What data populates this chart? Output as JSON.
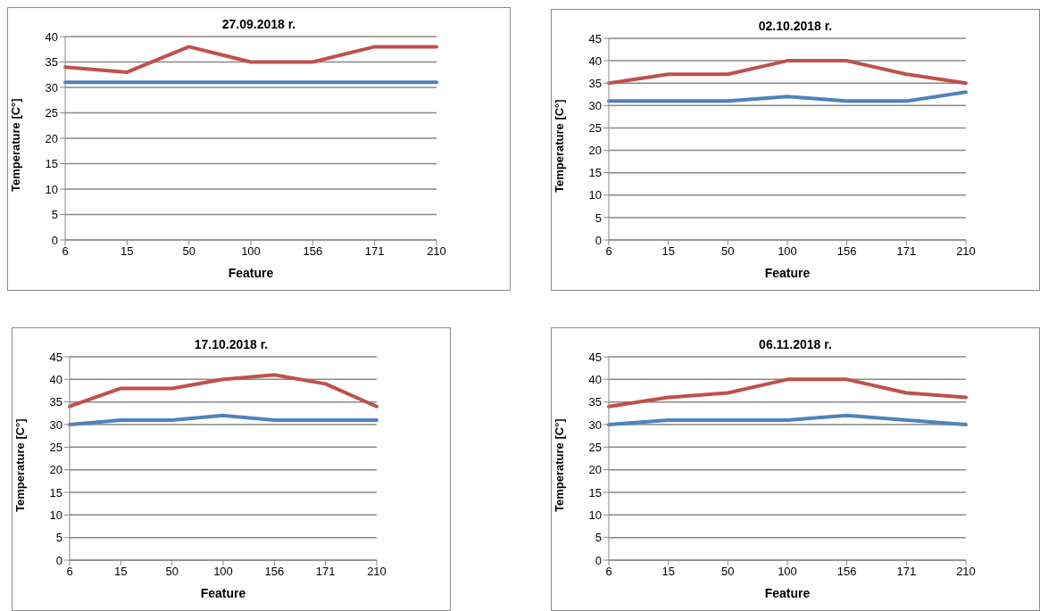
{
  "chart_data": [
    {
      "type": "line",
      "title": "27.09.2018 r.",
      "xlabel": "Feature",
      "ylabel": "Temperature [C°]",
      "categories": [
        "6",
        "15",
        "50",
        "100",
        "156",
        "171",
        "210"
      ],
      "series": [
        {
          "color": "#c0504d",
          "values": [
            34,
            33,
            38,
            35,
            35,
            38,
            38
          ]
        },
        {
          "color": "#4f81bd",
          "values": [
            31,
            31,
            31,
            31,
            31,
            31,
            31
          ]
        }
      ],
      "ylim": [
        0,
        40
      ],
      "yticks": [
        0,
        5,
        10,
        15,
        20,
        25,
        30,
        35,
        40
      ],
      "grid": "y",
      "marker": "none",
      "line_style": "solid"
    },
    {
      "type": "line",
      "title": "02.10.2018 r.",
      "xlabel": "Feature",
      "ylabel": "Temperature [C°]",
      "categories": [
        "6",
        "15",
        "50",
        "100",
        "156",
        "171",
        "210"
      ],
      "series": [
        {
          "color": "#c0504d",
          "values": [
            35,
            37,
            37,
            40,
            40,
            37,
            35
          ]
        },
        {
          "color": "#4f81bd",
          "values": [
            31,
            31,
            31,
            32,
            31,
            31,
            33
          ]
        }
      ],
      "ylim": [
        0,
        45
      ],
      "yticks": [
        0,
        5,
        10,
        15,
        20,
        25,
        30,
        35,
        40,
        45
      ],
      "grid": "y",
      "marker": "none",
      "line_style": "solid"
    },
    {
      "type": "line",
      "title": "17.10.2018 r.",
      "xlabel": "Feature",
      "ylabel": "Temperature [C°]",
      "categories": [
        "6",
        "15",
        "50",
        "100",
        "156",
        "171",
        "210"
      ],
      "series": [
        {
          "color": "#c0504d",
          "values": [
            34,
            38,
            38,
            40,
            41,
            39,
            34
          ]
        },
        {
          "color": "#4f81bd",
          "values": [
            30,
            31,
            31,
            32,
            31,
            31,
            31
          ]
        }
      ],
      "ylim": [
        0,
        45
      ],
      "yticks": [
        0,
        5,
        10,
        15,
        20,
        25,
        30,
        35,
        40,
        45
      ],
      "grid": "y",
      "marker": "none",
      "line_style": "solid"
    },
    {
      "type": "line",
      "title": "06.11.2018 r.",
      "xlabel": "Feature",
      "ylabel": "Temperature [C°]",
      "categories": [
        "6",
        "15",
        "50",
        "100",
        "156",
        "171",
        "210"
      ],
      "series": [
        {
          "color": "#c0504d",
          "values": [
            34,
            36,
            37,
            40,
            40,
            37,
            36
          ]
        },
        {
          "color": "#4f81bd",
          "values": [
            30,
            31,
            31,
            31,
            32,
            31,
            30
          ]
        }
      ],
      "ylim": [
        0,
        45
      ],
      "yticks": [
        0,
        5,
        10,
        15,
        20,
        25,
        30,
        35,
        40,
        45
      ],
      "grid": "y",
      "marker": "none",
      "line_style": "solid"
    }
  ]
}
